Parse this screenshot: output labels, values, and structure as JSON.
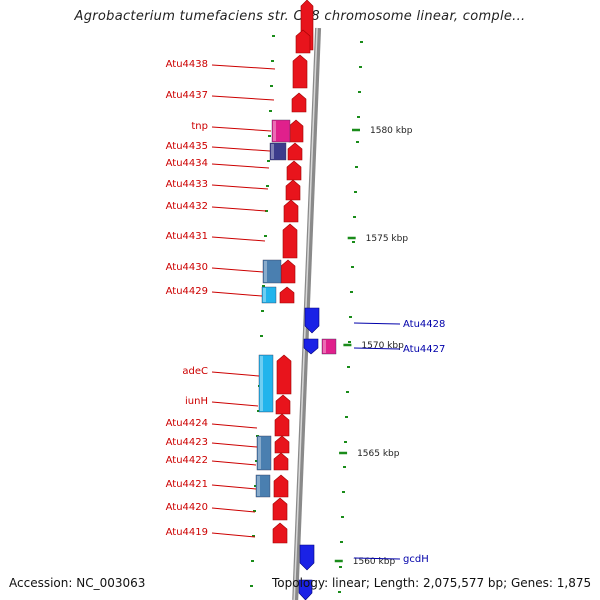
{
  "title": "Agrobacterium tumefaciens str. C58 chromosome linear, comple...",
  "footer": {
    "accession": "Accession: NC_003063",
    "summary": "Topology: linear; Length: 2,075,577 bp; Genes: 1,875"
  },
  "colors": {
    "forward_gene": "#e8141c",
    "reverse_gene": "#1a22e6",
    "transposase": "#e0208c",
    "cog_light": "#22b4ec",
    "cog_steel": "#4a7fb0",
    "cog_dark": "#3c3c8c",
    "backbone": "#8a8a8a",
    "tick": "#1a8c1a",
    "forward_label": "#cc0000",
    "reverse_label": "#0000aa"
  },
  "scale_ticks": [
    {
      "label": "1580 kbp"
    },
    {
      "label": "1575 kbp"
    },
    {
      "label": "1570 kbp"
    },
    {
      "label": "1565 kbp"
    },
    {
      "label": "1560 kbp"
    }
  ],
  "forward_genes": [
    {
      "name": "Atu4438"
    },
    {
      "name": "Atu4437"
    },
    {
      "name": "tnp"
    },
    {
      "name": "Atu4435"
    },
    {
      "name": "Atu4434"
    },
    {
      "name": "Atu4433"
    },
    {
      "name": "Atu4432"
    },
    {
      "name": "Atu4431"
    },
    {
      "name": "Atu4430"
    },
    {
      "name": "Atu4429"
    },
    {
      "name": "adeC"
    },
    {
      "name": "iunH"
    },
    {
      "name": "Atu4424"
    },
    {
      "name": "Atu4423"
    },
    {
      "name": "Atu4422"
    },
    {
      "name": "Atu4421"
    },
    {
      "name": "Atu4420"
    },
    {
      "name": "Atu4419"
    }
  ],
  "reverse_genes": [
    {
      "name": "Atu4428"
    },
    {
      "name": "Atu4427"
    },
    {
      "name": "gcdH"
    }
  ]
}
